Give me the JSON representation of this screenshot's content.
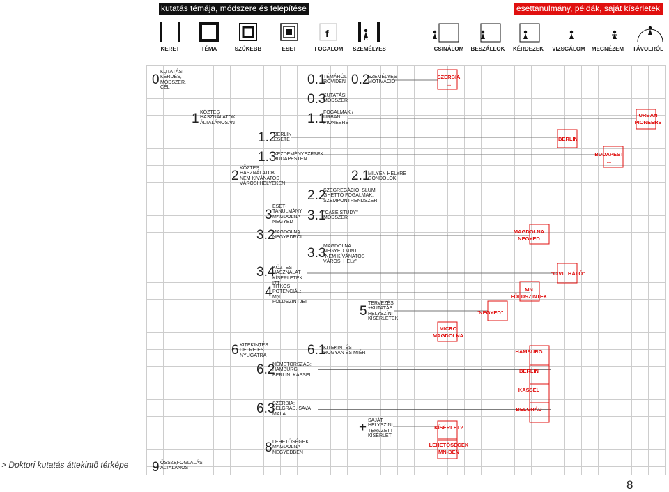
{
  "header": {
    "left_title": "kutatás témája, módszere és felépítése",
    "right_title": "esettanulmány, példák, saját kísérletek"
  },
  "left_icons": [
    {
      "label": "KERET",
      "icon": "frame-bars-icon"
    },
    {
      "label": "TÉMA",
      "icon": "square-frame-icon"
    },
    {
      "label": "SZÜKEBB",
      "icon": "nested-square-icon"
    },
    {
      "label": "ESET",
      "icon": "double-nested-square-icon"
    },
    {
      "label": "FOGALOM",
      "icon": "f-letter-icon"
    },
    {
      "label": "SZEMÉLYES",
      "icon": "person-in-bars-icon"
    }
  ],
  "right_icons": [
    {
      "label": "CSINÁLOM",
      "icon": "person-square-icon"
    },
    {
      "label": "BESZÁLLOK",
      "icon": "person-entering-icon"
    },
    {
      "label": "KÉRDEZEK",
      "icon": "person-asking-icon"
    },
    {
      "label": "VIZSGÁLOM",
      "icon": "person-examining-icon"
    },
    {
      "label": "MEGNÉZEM",
      "icon": "person-looking-icon"
    },
    {
      "label": "TÁVOLRÓL",
      "icon": "person-dome-icon"
    }
  ],
  "outline": [
    {
      "num": "0",
      "text": "KUTATÁSI KÉRDÉS, MÓDSZER, CÉL"
    },
    {
      "num": "0.1",
      "text": "TÉMÁRÓL RÖVIDEN"
    },
    {
      "num": "0.2",
      "text": "SZEMÉLYES MOTIVÁCIÓ"
    },
    {
      "num": "0.3",
      "text": "KUTATÁSI MÓDSZER"
    },
    {
      "num": "1",
      "text": "KÖZTES HASZNÁLATOK ÁLTALÁNOSAN"
    },
    {
      "num": "1.1",
      "text": "FOGALMAK / URBAN PIONEERS"
    },
    {
      "num": "1.2",
      "text": "BERLIN ESETE"
    },
    {
      "num": "1.3",
      "text": "KEZDEMÉNYEZÉSEK BUDAPESTEN"
    },
    {
      "num": "2",
      "text": "KÖZTES HASZNÁLATOK NEM KÍVÁNATOS VÁROSI HELYEKEN"
    },
    {
      "num": "2.1",
      "text": "MILYEN HELYRE GONDOLOK"
    },
    {
      "num": "2.2",
      "text": "SZEGREGÁCIÓ, SLUM, GHETTÓ FOGALMAK, SZEMPONTRENDSZER"
    },
    {
      "num": "3",
      "text": "ESET-TANULMÁNY MAGDOLNA NEGYED"
    },
    {
      "num": "3.1",
      "text": "\"CASE STUDY\" MÓDSZER"
    },
    {
      "num": "3.2",
      "text": "MAGDOLNA NEGYEDRŐL"
    },
    {
      "num": "3.3",
      "text": "MAGDOLNA NEGYED MINT \"NEM KÍVÁNATOS VÁROSI HELY\""
    },
    {
      "num": "3.4",
      "text": "KÖZTES HASZNÁLAT KÍSÉRLETEK ITT"
    },
    {
      "num": "4",
      "text": "TITKOS POTENCIÁL: MN FÖLDSZINTJEI"
    },
    {
      "num": "5",
      "text": "TERVEZÉS +KUTATÁS HELYSZÍNI KÍSÉRLETEK"
    },
    {
      "num": "6",
      "text": "KITEKINTÉS DÉLRE ÉS NYUGATRA"
    },
    {
      "num": "6.1",
      "text": "KITEKINTÉS HOGYAN ÉS MIÉRT"
    },
    {
      "num": "6.2",
      "text": "NÉMETORSZÁG: HAMBURG, BERLIN, KASSEL"
    },
    {
      "num": "6.3",
      "text": "SZERBIA: BELGRÁD, SAVA MALA"
    },
    {
      "num": "+",
      "text": "SAJÁT HELYSZÍNI TERVZETT KÍSÉRLET"
    },
    {
      "num": "8",
      "text": "LEHETŐSÉGEK MAGDOLNA NEGYEDBEN"
    },
    {
      "num": "9",
      "text": "ÖSSZEFOGLALÁS ÁLTALÁNOS"
    }
  ],
  "cases": [
    {
      "text": "SZERBIA\n..."
    },
    {
      "text": "URBAN\nPIONEERS"
    },
    {
      "text": "BERLIN"
    },
    {
      "text": "BUDAPEST\n..."
    },
    {
      "text": "MAGDOLNA\nNEGYED"
    },
    {
      "text": "\"CIVIL HÁLÓ\""
    },
    {
      "text": "MN\nFÖLDSZINTEK"
    },
    {
      "text": "\"NEGYED\""
    },
    {
      "text": "MICRO\nMAGDOLNA"
    },
    {
      "text": "HAMBURG"
    },
    {
      "text": "BERLIN"
    },
    {
      "text": "KASSEL"
    },
    {
      "text": "BELGRÁD"
    },
    {
      "text": "KÍSÉRLET?"
    },
    {
      "text": "LEHETŐSÉGEK\nMN-BEN"
    }
  ],
  "footer": "> Doktori kutatás áttekintő térképe",
  "page_number": "8",
  "colors": {
    "accent": "#e0100f",
    "ink": "#111111",
    "grid": "#c8c8c8"
  }
}
